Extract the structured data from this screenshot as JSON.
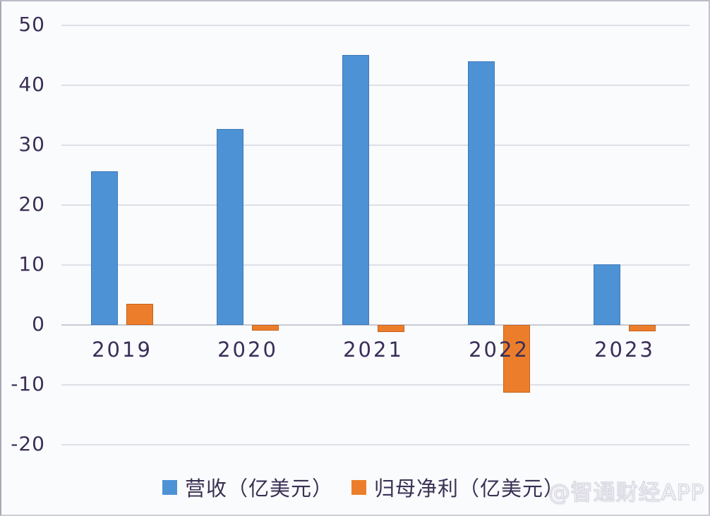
{
  "chart_data": {
    "type": "bar",
    "categories": [
      "2019",
      "2020",
      "2021",
      "2022",
      "2023"
    ],
    "series": [
      {
        "name": "营收（亿美元）",
        "color": "#4e92d6",
        "border": "#3d7ab8",
        "values": [
          25.7,
          32.7,
          45.0,
          44.0,
          10.1
        ]
      },
      {
        "name": "归母净利（亿美元）",
        "color": "#ec7e2b",
        "border": "#c8621a",
        "values": [
          3.5,
          -0.9,
          -1.2,
          -11.3,
          -1.0
        ]
      }
    ],
    "title": "",
    "xlabel": "",
    "ylabel": "",
    "ylim": [
      -20,
      50
    ],
    "yticks": [
      50,
      40,
      30,
      20,
      10,
      0,
      -10,
      -20
    ],
    "grid": true,
    "legend_position": "bottom"
  },
  "watermark": "@智通财经APP",
  "colors": {
    "background": "#fafbfd",
    "gridline": "#dde0e8",
    "zero_line": "#c7cad3",
    "tick_text": "#3a2f55",
    "category_text": "#3a2e58",
    "legend_text": "#3a3153",
    "bar_blue": "#4e92d6",
    "bar_orange": "#ec7e2b"
  }
}
